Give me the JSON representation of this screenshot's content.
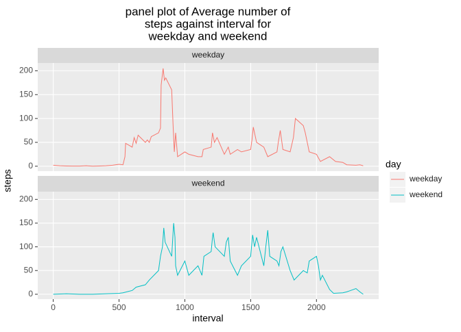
{
  "chart_data": {
    "type": "line",
    "title": [
      "panel plot of Average number of",
      "steps against interval for",
      "weekday and weekend"
    ],
    "x_label": "interval",
    "y_label": "steps",
    "legend_title": "day",
    "xlim": [
      -117.75,
      2472.75
    ],
    "xticks": [
      0,
      500,
      1000,
      1500,
      2000
    ],
    "ylim": [
      -10.3,
      216.3
    ],
    "yticks": [
      0,
      50,
      100,
      150,
      200
    ],
    "grid": true,
    "series": [
      {
        "name": "weekday",
        "color": "#f8766d",
        "x": [
          0,
          50,
          100,
          150,
          200,
          250,
          300,
          350,
          400,
          450,
          500,
          530,
          545,
          550,
          600,
          615,
          630,
          645,
          700,
          715,
          730,
          745,
          800,
          815,
          820,
          835,
          845,
          855,
          900,
          910,
          920,
          930,
          945,
          1000,
          1030,
          1100,
          1130,
          1140,
          1200,
          1210,
          1225,
          1245,
          1300,
          1330,
          1345,
          1400,
          1430,
          1500,
          1510,
          1520,
          1545,
          1600,
          1630,
          1700,
          1710,
          1725,
          1745,
          1800,
          1825,
          1840,
          1900,
          1915,
          1930,
          1945,
          2000,
          2030,
          2100,
          2145,
          2200,
          2230,
          2300,
          2330,
          2355
        ],
        "values": [
          2,
          1,
          0.5,
          0.3,
          0.2,
          1,
          0.1,
          0.5,
          1,
          2,
          4,
          3,
          20,
          48,
          40,
          60,
          48,
          65,
          50,
          55,
          50,
          62,
          70,
          80,
          170,
          205,
          180,
          185,
          160,
          90,
          30,
          70,
          20,
          30,
          25,
          20,
          20,
          35,
          40,
          70,
          50,
          60,
          25,
          40,
          25,
          35,
          30,
          35,
          55,
          82,
          50,
          40,
          20,
          30,
          50,
          75,
          35,
          30,
          60,
          100,
          85,
          70,
          50,
          30,
          25,
          10,
          20,
          10,
          8,
          3,
          2,
          3,
          1
        ]
      },
      {
        "name": "weekend",
        "color": "#00bfc4",
        "x": [
          0,
          100,
          200,
          300,
          400,
          500,
          530,
          600,
          630,
          700,
          730,
          800,
          815,
          830,
          840,
          850,
          900,
          915,
          925,
          930,
          945,
          1000,
          1030,
          1100,
          1130,
          1145,
          1200,
          1210,
          1215,
          1230,
          1300,
          1315,
          1330,
          1345,
          1400,
          1430,
          1500,
          1515,
          1530,
          1545,
          1600,
          1615,
          1630,
          1645,
          1700,
          1715,
          1730,
          1745,
          1800,
          1830,
          1900,
          1930,
          1945,
          2000,
          2015,
          2030,
          2045,
          2100,
          2130,
          2200,
          2230,
          2300,
          2330,
          2355
        ],
        "values": [
          0,
          1,
          0,
          0,
          1,
          2,
          3,
          8,
          15,
          20,
          30,
          50,
          80,
          100,
          140,
          110,
          80,
          150,
          120,
          60,
          40,
          70,
          40,
          60,
          40,
          80,
          90,
          120,
          130,
          100,
          80,
          110,
          120,
          70,
          40,
          60,
          80,
          125,
          100,
          120,
          60,
          100,
          135,
          80,
          70,
          60,
          90,
          100,
          50,
          30,
          50,
          45,
          70,
          80,
          60,
          30,
          40,
          10,
          2,
          3,
          5,
          12,
          5,
          0
        ]
      }
    ]
  }
}
